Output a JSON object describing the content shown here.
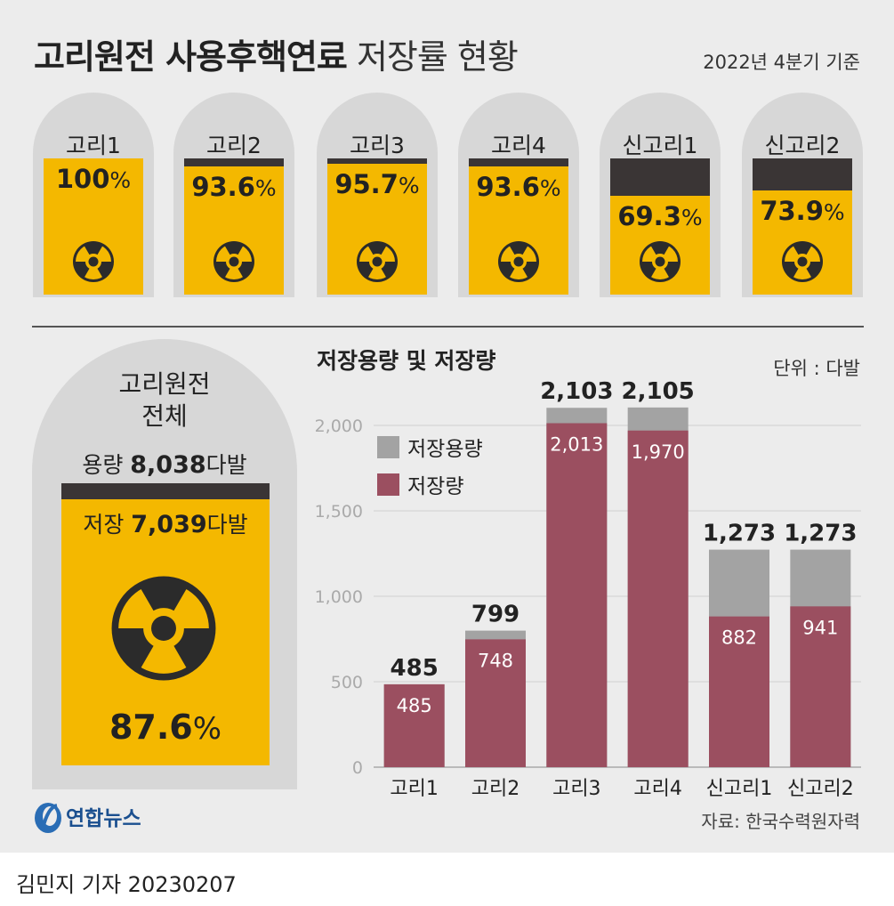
{
  "title": {
    "bold": "고리원전 사용후핵연료",
    "normal": "저장률 현황"
  },
  "basis": "2022년 4분기 기준",
  "unit_sign": "%",
  "plants": [
    {
      "name": "고리1",
      "rate": "100",
      "rate_value": 100
    },
    {
      "name": "고리2",
      "rate": "93.6",
      "rate_value": 93.6
    },
    {
      "name": "고리3",
      "rate": "95.7",
      "rate_value": 95.7
    },
    {
      "name": "고리4",
      "rate": "93.6",
      "rate_value": 93.6
    },
    {
      "name": "신고리1",
      "rate": "69.3",
      "rate_value": 69.3
    },
    {
      "name": "신고리2",
      "rate": "73.9",
      "rate_value": 73.9
    }
  ],
  "total": {
    "name_line1": "고리원전",
    "name_line2": "전체",
    "capacity_prefix": "용량 ",
    "capacity_value": "8,038",
    "capacity_suffix": "다발",
    "storage_prefix": "저장 ",
    "storage_value": "7,039",
    "storage_suffix": "다발",
    "rate": "87.6"
  },
  "chart_title": "저장용량 및 저장량",
  "unit_label": "단위 : 다발",
  "colors": {
    "capacity": "#a3a3a3",
    "storage": "#9b4f60",
    "tank_fill": "#f4b800",
    "tank_empty": "#3a3535",
    "silhouette": "#d7d7d7",
    "background": "#ececec"
  },
  "chart_data": {
    "type": "bar",
    "stacked": "overlay",
    "title": "저장용량 및 저장량",
    "unit": "다발",
    "categories": [
      "고리1",
      "고리2",
      "고리3",
      "고리4",
      "신고리1",
      "신고리2"
    ],
    "series": [
      {
        "name": "저장용량",
        "values": [
          485,
          799,
          2103,
          2105,
          1273,
          1273
        ],
        "labels": [
          "485",
          "799",
          "2,103",
          "2,105",
          "1,273",
          "1,273"
        ]
      },
      {
        "name": "저장량",
        "values": [
          485,
          748,
          2013,
          1970,
          882,
          941
        ],
        "labels": [
          "485",
          "748",
          "2,013",
          "1,970",
          "882",
          "941"
        ]
      }
    ],
    "yticks": [
      0,
      500,
      1000,
      1500,
      2000
    ],
    "ytick_labels": [
      "0",
      "500",
      "1,000",
      "1,500",
      "2,000"
    ],
    "ylim": [
      0,
      2150
    ],
    "grid": true,
    "legend": "top-left"
  },
  "source": "자료: 한국수력원자력",
  "logo_text": "연합뉴스",
  "reporter": {
    "name": "김민지 기자",
    "date": "20230207"
  }
}
